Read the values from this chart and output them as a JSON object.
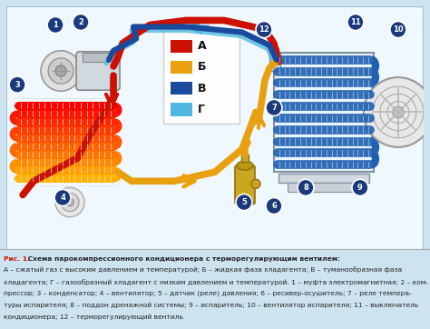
{
  "bg_color": "#cde4f0",
  "diagram_bg": "#f0f8ff",
  "border_color": "#a0c0d8",
  "title_bold": "Рис. 1.",
  "title_rest": " Схема парокомпрессионного кондиционера с терморегулирующим вентилем:",
  "caption_lines": [
    "А – сжатый газ с высоким давлением и температурой; Б – жидкая фаза хладагента; В – туманообразная фаза",
    "хладагента; Г – газообразный хладагент с низким давлением и температурой. 1 – муфта электромагнитная; 2 – ком-",
    "прессор; 3 – конденсатор; 4 – вентилятор; 5 – датчик (реле) давления; 6 – ресивер-осушитель; 7 – реле темпера-",
    "туры испарителя; 8 – поддон дренажной системы; 9 – испаритель; 10 – вентилятор испарителя; 11 – выключатель",
    "кондиционера; 12 – терморегулирующий вентиль"
  ],
  "legend_items": [
    {
      "label": "А",
      "color": "#cc1100"
    },
    {
      "label": "Б",
      "color": "#e8a010"
    },
    {
      "label": "В",
      "color": "#1a4a9c"
    },
    {
      "label": "Г",
      "color": "#50b8e0"
    }
  ],
  "color_A": "#cc1100",
  "color_B": "#e8a010",
  "color_C": "#1a4a9c",
  "color_D": "#50b8e0",
  "number_circle_color": "#1a3a7c",
  "number_text_color": "#ffffff",
  "caption_title_color": "#cc1100",
  "caption_text_color": "#222222",
  "caption_bg": "#f5f0e0"
}
